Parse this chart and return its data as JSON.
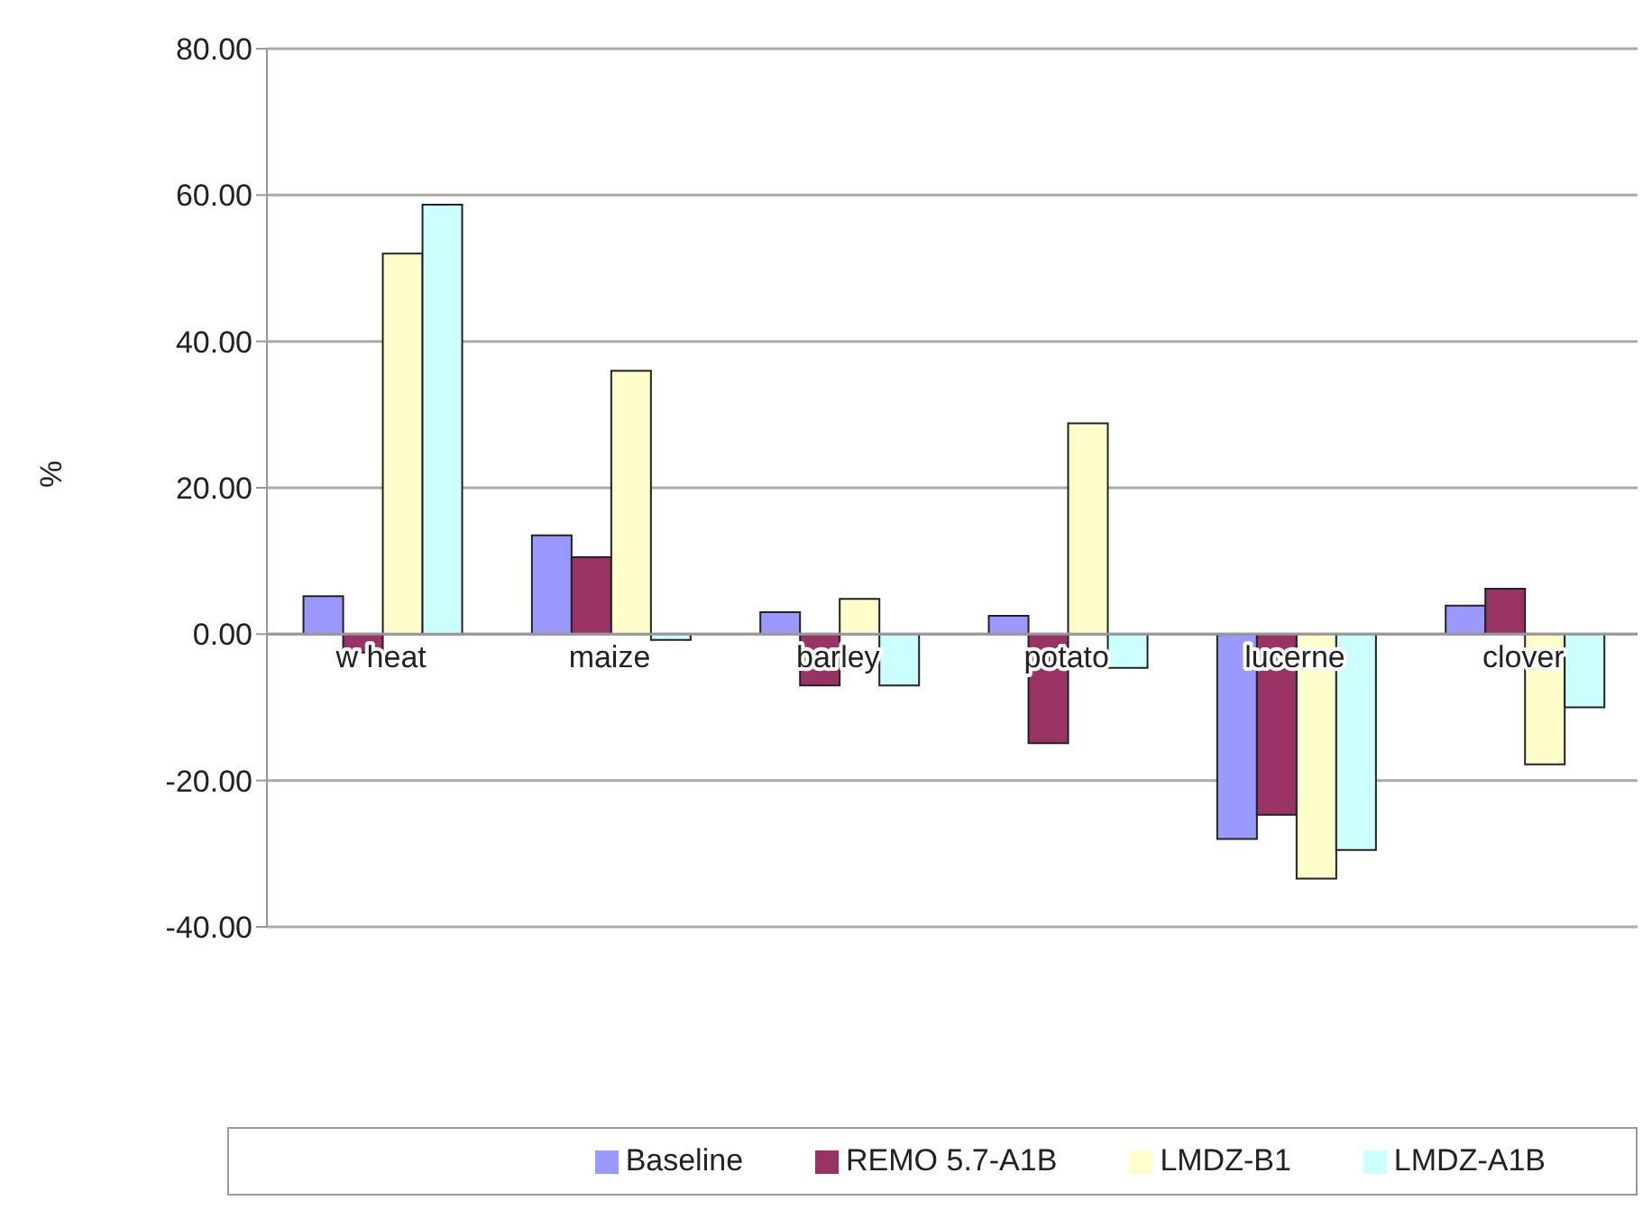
{
  "chart_data": {
    "type": "bar",
    "ylabel": "%",
    "categories": [
      "w heat",
      "maize",
      "barley",
      "potato",
      "lucerne",
      "clover"
    ],
    "series": [
      {
        "name": "Baseline",
        "color": "#9999ff",
        "values": [
          5.2,
          13.5,
          3,
          2.5,
          -28,
          3.9
        ]
      },
      {
        "name": "REMO 5.7-A1B",
        "color": "#993366",
        "values": [
          -2.5,
          10.5,
          -7,
          -14.9,
          -24.7,
          6.2
        ]
      },
      {
        "name": "LMDZ-B1",
        "color": "#ffffcc",
        "values": [
          52,
          36,
          4.8,
          28.8,
          -33.4,
          -17.8
        ]
      },
      {
        "name": "LMDZ-A1B",
        "color": "#ccffff",
        "values": [
          58.7,
          -0.8,
          -7,
          -4.6,
          -29.5,
          -10
        ]
      }
    ],
    "ylim": [
      -40,
      80
    ],
    "yticks": [
      {
        "value": -40,
        "label": "-40.00"
      },
      {
        "value": -20,
        "label": "-20.00"
      },
      {
        "value": 0,
        "label": "0.00"
      },
      {
        "value": 20,
        "label": "20.00"
      },
      {
        "value": 40,
        "label": "40.00"
      },
      {
        "value": 60,
        "label": "60.00"
      },
      {
        "value": 80,
        "label": "80.00"
      }
    ],
    "grid": "y",
    "legend": "bottom"
  }
}
